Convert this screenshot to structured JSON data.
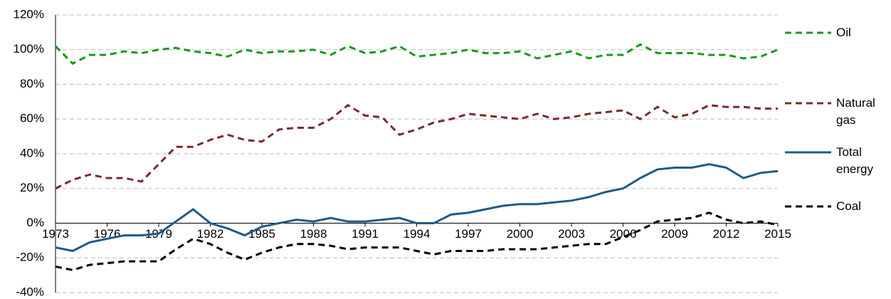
{
  "chart_data": {
    "type": "line",
    "x": [
      1973,
      1974,
      1975,
      1976,
      1977,
      1978,
      1979,
      1980,
      1981,
      1982,
      1983,
      1984,
      1985,
      1986,
      1987,
      1988,
      1989,
      1990,
      1991,
      1992,
      1993,
      1994,
      1995,
      1996,
      1997,
      1998,
      1999,
      2000,
      2001,
      2002,
      2003,
      2004,
      2005,
      2006,
      2007,
      2008,
      2009,
      2010,
      2011,
      2012,
      2013,
      2014,
      2015
    ],
    "series": [
      {
        "name": "Oil",
        "color": "#199a19",
        "style": "dashed",
        "values": [
          102,
          92,
          97,
          97,
          99,
          98,
          100,
          101,
          99,
          98,
          96,
          100,
          98,
          99,
          99,
          100,
          97,
          102,
          98,
          99,
          102,
          96,
          97,
          98,
          100,
          98,
          98,
          99,
          95,
          97,
          99,
          95,
          97,
          97,
          103,
          98,
          98,
          98,
          97,
          97,
          95,
          96,
          100
        ]
      },
      {
        "name": "Natural gas",
        "color": "#7b2a2a",
        "style": "dashed",
        "values": [
          20,
          25,
          28,
          26,
          26,
          24,
          34,
          44,
          44,
          48,
          51,
          48,
          47,
          54,
          55,
          55,
          60,
          68,
          62,
          61,
          51,
          54,
          58,
          60,
          63,
          62,
          61,
          60,
          63,
          60,
          61,
          63,
          64,
          65,
          60,
          67,
          61,
          63,
          68,
          67,
          67,
          66,
          66
        ]
      },
      {
        "name": "Total energy",
        "color": "#1f5b8a",
        "style": "solid",
        "values": [
          -14,
          -16,
          -11,
          -9,
          -7,
          -7,
          -6,
          1,
          8,
          0,
          -3,
          -7,
          -2,
          0,
          2,
          1,
          3,
          1,
          1,
          2,
          3,
          0,
          0,
          5,
          6,
          8,
          10,
          11,
          11,
          12,
          13,
          15,
          18,
          20,
          26,
          31,
          32,
          32,
          34,
          32,
          26,
          29,
          30
        ]
      },
      {
        "name": "Coal",
        "color": "#000000",
        "style": "dashed",
        "values": [
          -25,
          -27,
          -24,
          -23,
          -22,
          -22,
          -22,
          -15,
          -9,
          -12,
          -17,
          -21,
          -17,
          -14,
          -12,
          -12,
          -13,
          -15,
          -14,
          -14,
          -14,
          -16,
          -18,
          -16,
          -16,
          -16,
          -15,
          -15,
          -15,
          -14,
          -13,
          -12,
          -12,
          -8,
          -4,
          1,
          2,
          3,
          6,
          2,
          0,
          1,
          -1
        ]
      }
    ],
    "xlim": [
      1973,
      2015
    ],
    "xticks": [
      1973,
      1976,
      1979,
      1982,
      1985,
      1988,
      1991,
      1994,
      1997,
      2000,
      2003,
      2006,
      2009,
      2012,
      2015
    ],
    "ylim": [
      -40,
      120
    ],
    "yticks": [
      {
        "value": -40,
        "label": "-40%"
      },
      {
        "value": -20,
        "label": "-20%"
      },
      {
        "value": 0,
        "label": "0%"
      },
      {
        "value": 20,
        "label": "20%"
      },
      {
        "value": 40,
        "label": "40%"
      },
      {
        "value": 60,
        "label": "60%"
      },
      {
        "value": 80,
        "label": "80%"
      },
      {
        "value": 100,
        "label": "100%"
      },
      {
        "value": 120,
        "label": "120%"
      }
    ],
    "grid": true,
    "legend": "right"
  }
}
